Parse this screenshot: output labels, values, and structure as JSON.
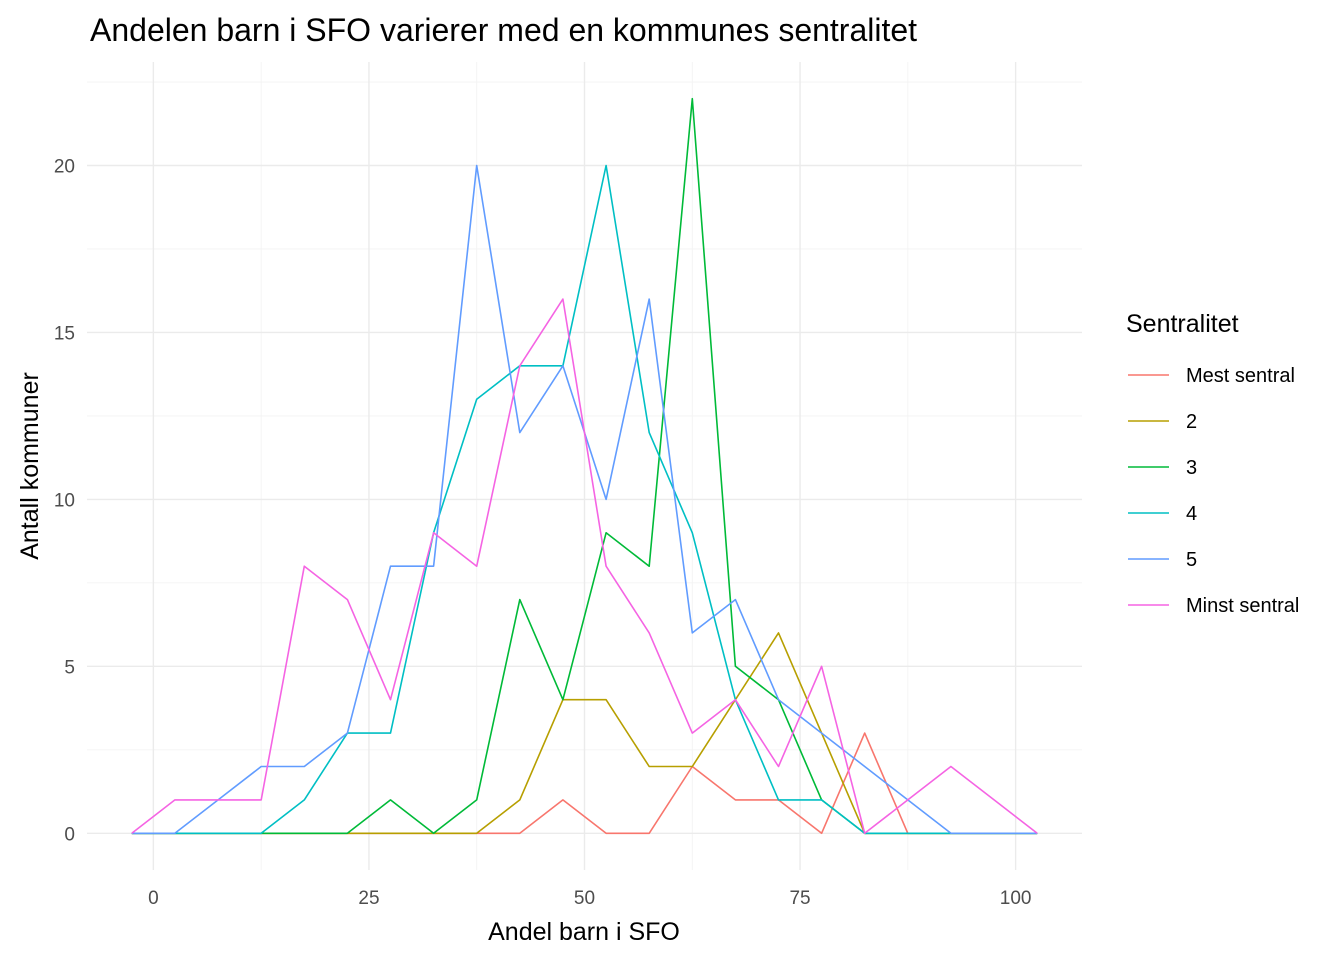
{
  "chart_data": {
    "type": "line",
    "title": "Andelen barn i SFO varierer med en kommunes sentralitet",
    "xlabel": "Andel barn i SFO",
    "ylabel": "Antall kommuner",
    "xlim": [
      -2.5,
      102.5
    ],
    "ylim": [
      0,
      22
    ],
    "x_ticks": [
      0,
      25,
      50,
      75,
      100
    ],
    "x_tick_labels": [
      "0",
      "25",
      "50",
      "75",
      "100"
    ],
    "y_ticks": [
      0,
      5,
      10,
      15,
      20
    ],
    "y_tick_labels": [
      "0",
      "5",
      "10",
      "15",
      "20"
    ],
    "grid": true,
    "legend": {
      "title": "Sentralitet",
      "position": "right"
    },
    "x": [
      -2.5,
      2.5,
      7.5,
      12.5,
      17.5,
      22.5,
      27.5,
      32.5,
      37.5,
      42.5,
      47.5,
      52.5,
      57.5,
      62.5,
      67.5,
      72.5,
      77.5,
      82.5,
      87.5,
      92.5,
      97.5,
      102.5
    ],
    "series": [
      {
        "name": "Mest sentral",
        "color": "#F8766D",
        "values": [
          0,
          0,
          0,
          0,
          0,
          0,
          0,
          0,
          0,
          0,
          1,
          0,
          0,
          2,
          1,
          1,
          0,
          3,
          0,
          0,
          0,
          0
        ]
      },
      {
        "name": "2",
        "color": "#B79F00",
        "values": [
          0,
          0,
          0,
          0,
          0,
          0,
          0,
          0,
          0,
          1,
          4,
          4,
          2,
          2,
          4,
          6,
          3,
          0,
          0,
          0,
          0,
          0
        ]
      },
      {
        "name": "3",
        "color": "#00BA38",
        "values": [
          0,
          0,
          0,
          0,
          0,
          0,
          1,
          0,
          1,
          7,
          4,
          9,
          8,
          22,
          5,
          4,
          1,
          0,
          0,
          0,
          0,
          0
        ]
      },
      {
        "name": "4",
        "color": "#00BFC4",
        "values": [
          0,
          0,
          0,
          0,
          1,
          3,
          3,
          9,
          13,
          14,
          14,
          20,
          12,
          9,
          4,
          1,
          1,
          0,
          0,
          0,
          0,
          0
        ]
      },
      {
        "name": "5",
        "color": "#619CFF",
        "values": [
          0,
          0,
          1,
          2,
          2,
          3,
          8,
          8,
          20,
          12,
          14,
          10,
          16,
          6,
          7,
          4,
          3,
          2,
          1,
          0,
          0,
          0
        ]
      },
      {
        "name": "Minst sentral",
        "color": "#F564E3",
        "values": [
          0,
          1,
          1,
          1,
          8,
          7,
          4,
          9,
          8,
          14,
          16,
          8,
          6,
          3,
          4,
          2,
          5,
          0,
          1,
          2,
          1,
          0
        ]
      }
    ]
  }
}
